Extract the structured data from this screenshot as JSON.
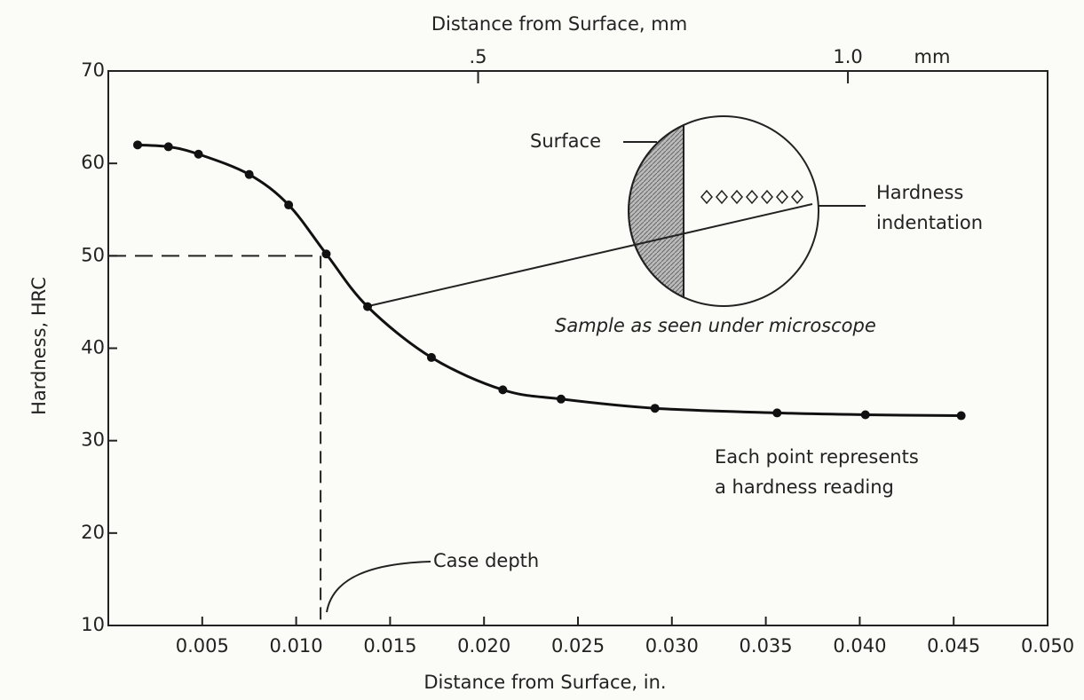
{
  "chart_data": {
    "type": "line",
    "title": "Distance from Surface, mm",
    "xlabel": "Distance from Surface, in.",
    "ylabel": "Hardness, HRC",
    "x": [
      0.00156,
      0.0032,
      0.0048,
      0.0075,
      0.0096,
      0.0116,
      0.0138,
      0.0172,
      0.021,
      0.0241,
      0.0291,
      0.0356,
      0.0403,
      0.0454
    ],
    "values": [
      62,
      61.8,
      61,
      58.8,
      55.5,
      50.2,
      44.5,
      39,
      35.5,
      34.5,
      33.5,
      33,
      32.8,
      32.7
    ],
    "color": "#111111",
    "xlim": [
      0,
      0.05
    ],
    "xticks": [
      0.005,
      {
        "value": 0.01,
        "label": "0.010"
      },
      0.015,
      {
        "value": 0.02,
        "label": "0.020"
      },
      0.025,
      {
        "value": 0.03,
        "label": "0.030"
      },
      0.035,
      {
        "value": 0.04,
        "label": "0.040"
      },
      0.045,
      {
        "value": 0.05,
        "label": "0.050"
      }
    ],
    "ylim": [
      10,
      70
    ],
    "yticks": [
      10,
      20,
      30,
      40,
      50,
      60,
      70
    ],
    "x2lim": [
      0,
      1.27
    ],
    "x2ticks": [
      {
        "value": 0.5,
        "label": ".5"
      },
      {
        "value": 1.0,
        "label": "1.0"
      }
    ],
    "x2unit": "mm",
    "case_depth": {
      "x": 0.0113,
      "y": 50,
      "label": "Case depth"
    },
    "annotations": {
      "surface": "Surface",
      "indentation": [
        "Hardness",
        "indentation"
      ],
      "microscope": "Sample as seen under microscope",
      "points": [
        "Each point represents",
        "a hardness reading"
      ]
    }
  }
}
